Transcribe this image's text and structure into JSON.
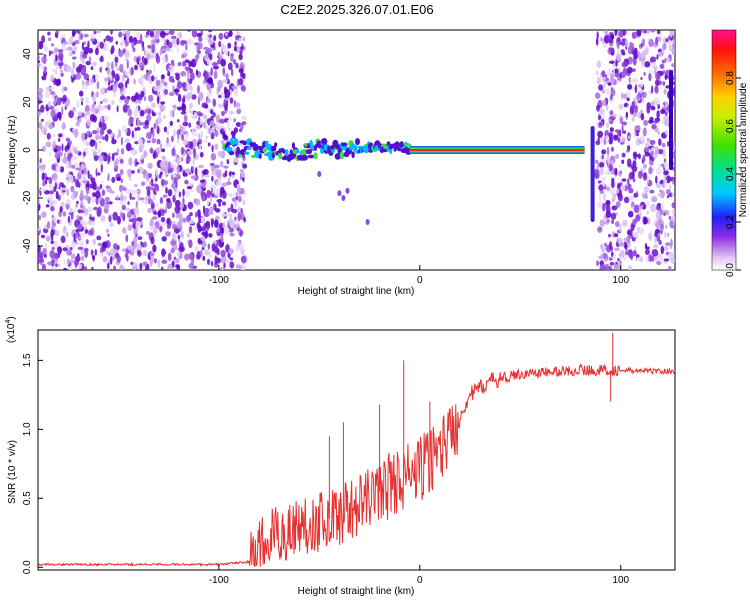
{
  "title": "C2E2.2025.326.07.01.E06",
  "chart_data": [
    {
      "type": "heatmap",
      "name": "spectrogram",
      "xlabel": "Height of straight line (km)",
      "ylabel": "Frequency (Hz)",
      "xlim": [
        -190,
        127
      ],
      "ylim": [
        -50,
        50
      ],
      "xticks": [
        -100,
        0,
        100
      ],
      "yticks": [
        -40,
        -20,
        0,
        20,
        40
      ],
      "noise_regions_km": [
        [
          -190,
          -87
        ],
        [
          88,
          127
        ]
      ],
      "signal_track": [
        {
          "x": -97,
          "f": 1.5
        },
        {
          "x": -90,
          "f": 1
        },
        {
          "x": -80,
          "f": 0
        },
        {
          "x": -70,
          "f": -1
        },
        {
          "x": -60,
          "f": -1
        },
        {
          "x": -50,
          "f": 1
        },
        {
          "x": -40,
          "f": 0
        },
        {
          "x": -30,
          "f": 1
        },
        {
          "x": -20,
          "f": 1
        },
        {
          "x": -10,
          "f": 1
        },
        {
          "x": 0,
          "f": 0
        },
        {
          "x": 10,
          "f": 0
        },
        {
          "x": 30,
          "f": 0
        },
        {
          "x": 60,
          "f": 0
        },
        {
          "x": 82,
          "f": 0
        }
      ],
      "colorbar": {
        "label": "Normalized spectral amplitude",
        "range": [
          0,
          1
        ],
        "ticks": [
          "0.0",
          "0.2",
          "0.4",
          "0.6",
          "0.8"
        ],
        "tick_values": [
          0,
          0.2,
          0.4,
          0.6,
          0.8
        ]
      }
    },
    {
      "type": "line",
      "name": "snr",
      "xlabel": "Height of straight line (km)",
      "ylabel": "SNR (10 * v/v)",
      "yscale_label": "(x10",
      "yscale_exp": "4",
      "yscale_close": ")",
      "xlim": [
        -190,
        127
      ],
      "ylim": [
        -0.02,
        1.72
      ],
      "xticks": [
        -100,
        0,
        100
      ],
      "yticks": [
        "0.0",
        "0.5",
        "1.0",
        "1.5"
      ],
      "ytick_values": [
        0,
        0.5,
        1.0,
        1.5
      ],
      "color": "#e83030",
      "trend": [
        {
          "x": -190,
          "y": 0.02
        },
        {
          "x": -100,
          "y": 0.02
        },
        {
          "x": -85,
          "y": 0.04
        },
        {
          "x": -75,
          "y": 0.2
        },
        {
          "x": -60,
          "y": 0.3
        },
        {
          "x": -45,
          "y": 0.35
        },
        {
          "x": -30,
          "y": 0.45
        },
        {
          "x": -15,
          "y": 0.6
        },
        {
          "x": 0,
          "y": 0.7
        },
        {
          "x": 15,
          "y": 0.95
        },
        {
          "x": 25,
          "y": 1.25
        },
        {
          "x": 35,
          "y": 1.35
        },
        {
          "x": 50,
          "y": 1.4
        },
        {
          "x": 80,
          "y": 1.43
        },
        {
          "x": 127,
          "y": 1.42
        }
      ],
      "spikes": [
        {
          "x": -45,
          "y": 0.95
        },
        {
          "x": -38,
          "y": 1.05
        },
        {
          "x": -20,
          "y": 1.18
        },
        {
          "x": -8,
          "y": 1.5
        },
        {
          "x": 5,
          "y": 1.2
        },
        {
          "x": 96,
          "y": 1.7
        },
        {
          "x": 95,
          "y": 1.2
        }
      ]
    }
  ]
}
